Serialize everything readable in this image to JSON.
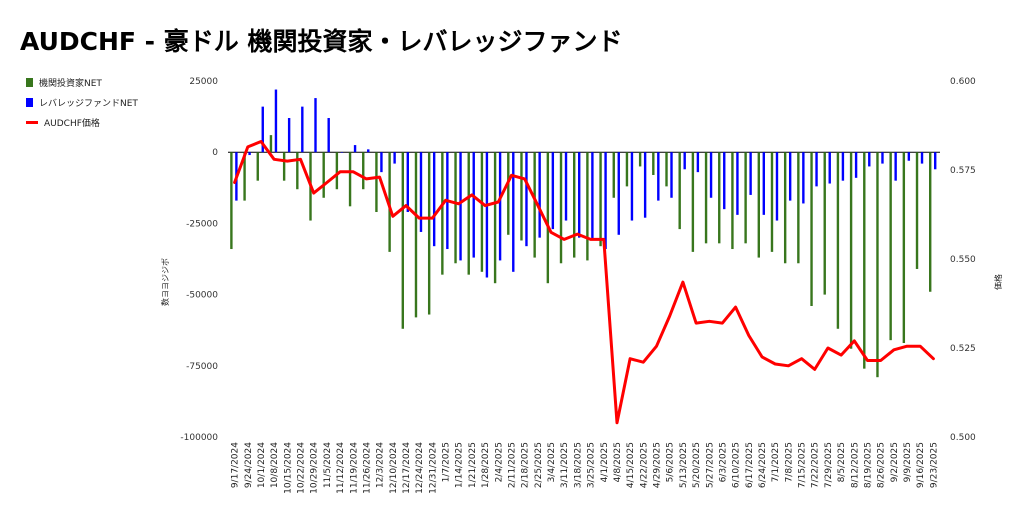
{
  "title": "AUDCHF - 豪ドル 機関投資家・レバレッジファンド",
  "chart_data": {
    "type": "bar+line",
    "title": "AUDCHF - 豪ドル 機関投資家・レバレッジファンド",
    "ylabel_left": "数ヨヨジジボ",
    "ylabel_right": "価格",
    "ylim_left": [
      -100000,
      25000
    ],
    "ylim_right": [
      0.5,
      0.6
    ],
    "yticks_left": [
      25000,
      0,
      -25000,
      -50000,
      -75000,
      -100000
    ],
    "yticks_left_labels": [
      "25000",
      "0",
      "-25000",
      "-50000",
      "-75000",
      "-100000"
    ],
    "yticks_right": [
      0.6,
      0.575,
      0.55,
      0.525,
      0.5
    ],
    "yticks_right_labels": [
      "0.600",
      "0.575",
      "0.550",
      "0.525",
      "0.500"
    ],
    "legend_position": "left",
    "grid": false,
    "x": [
      "9/17/2024",
      "9/24/2024",
      "10/1/2024",
      "10/8/2024",
      "10/15/2024",
      "10/22/2024",
      "10/29/2024",
      "11/5/2024",
      "11/12/2024",
      "11/19/2024",
      "11/26/2024",
      "12/3/2024",
      "12/10/2024",
      "12/17/2024",
      "12/24/2024",
      "12/31/2024",
      "1/7/2025",
      "1/14/2025",
      "1/21/2025",
      "1/28/2025",
      "2/4/2025",
      "2/11/2025",
      "2/18/2025",
      "2/25/2025",
      "3/4/2025",
      "3/11/2025",
      "3/18/2025",
      "3/25/2025",
      "4/1/2025",
      "4/8/2025",
      "4/15/2025",
      "4/22/2025",
      "4/29/2025",
      "5/6/2025",
      "5/13/2025",
      "5/20/2025",
      "5/27/2025",
      "6/3/2025",
      "6/10/2025",
      "6/17/2025",
      "6/24/2025",
      "7/1/2025",
      "7/8/2025",
      "7/15/2025",
      "7/22/2025",
      "7/29/2025",
      "8/5/2025",
      "8/12/2025",
      "8/19/2025",
      "8/26/2025",
      "9/2/2025",
      "9/9/2025",
      "9/16/2025",
      "9/23/2025"
    ],
    "series": [
      {
        "name": "機関投資家NET",
        "color": "#38761d",
        "type": "bar",
        "values": [
          -34000,
          -17000,
          -10000,
          6000,
          -10000,
          -13000,
          -24000,
          -16000,
          -13000,
          -19000,
          -13000,
          -21000,
          -35000,
          -62000,
          -58000,
          -57000,
          -43000,
          -39000,
          -43000,
          -42000,
          -46000,
          -29000,
          -31000,
          -37000,
          -46000,
          -39000,
          -37000,
          -38000,
          -33000,
          -16000,
          -12000,
          -5000,
          -8000,
          -12000,
          -27000,
          -35000,
          -32000,
          -32000,
          -34000,
          -32000,
          -37000,
          -35000,
          -39000,
          -39000,
          -54000,
          -50000,
          -62000,
          -69000,
          -76000,
          -79000,
          -66000,
          -67000,
          -41000,
          -49000
        ]
      },
      {
        "name": "レバレッジファンドNET",
        "color": "#0000ff",
        "type": "bar",
        "values": [
          -17000,
          -1000,
          16000,
          22000,
          12000,
          16000,
          19000,
          12000,
          0,
          2500,
          1000,
          -7000,
          -4000,
          -21000,
          -28000,
          -33000,
          -34000,
          -38000,
          -37000,
          -44000,
          -38000,
          -42000,
          -33000,
          -30000,
          -27000,
          -24000,
          -30000,
          -31000,
          -34000,
          -29000,
          -24000,
          -23000,
          -17000,
          -16000,
          -6000,
          -7000,
          -16000,
          -20000,
          -22000,
          -15000,
          -22000,
          -24000,
          -17000,
          -18000,
          -12000,
          -11000,
          -10000,
          -9000,
          -5000,
          -4000,
          -10000,
          -3000,
          -4000,
          -6000
        ]
      },
      {
        "name": "AUDCHF価格",
        "color": "#ff0000",
        "type": "line",
        "values": [
          0.5715,
          0.5815,
          0.583,
          0.578,
          0.5775,
          0.578,
          0.5685,
          0.5715,
          0.5745,
          0.5745,
          0.5725,
          0.573,
          0.562,
          0.565,
          0.5615,
          0.5615,
          0.5665,
          0.5655,
          0.568,
          0.565,
          0.566,
          0.5735,
          0.5725,
          0.565,
          0.5575,
          0.5555,
          0.557,
          0.5555,
          0.5555,
          0.504,
          0.522,
          0.521,
          0.5255,
          0.534,
          0.5435,
          0.532,
          0.5325,
          0.532,
          0.5365,
          0.5285,
          0.5225,
          0.5205,
          0.52,
          0.522,
          0.519,
          0.525,
          0.523,
          0.527,
          0.5215,
          0.5215,
          0.5245,
          0.5255,
          0.5255,
          0.522
        ]
      }
    ]
  },
  "legend": [
    {
      "label": "機関投資家NET",
      "color": "#38761d",
      "kind": "square"
    },
    {
      "label": "レバレッジファンドNET",
      "color": "#0000ff",
      "kind": "square"
    },
    {
      "label": "AUDCHF価格",
      "color": "#ff0000",
      "kind": "line"
    }
  ]
}
